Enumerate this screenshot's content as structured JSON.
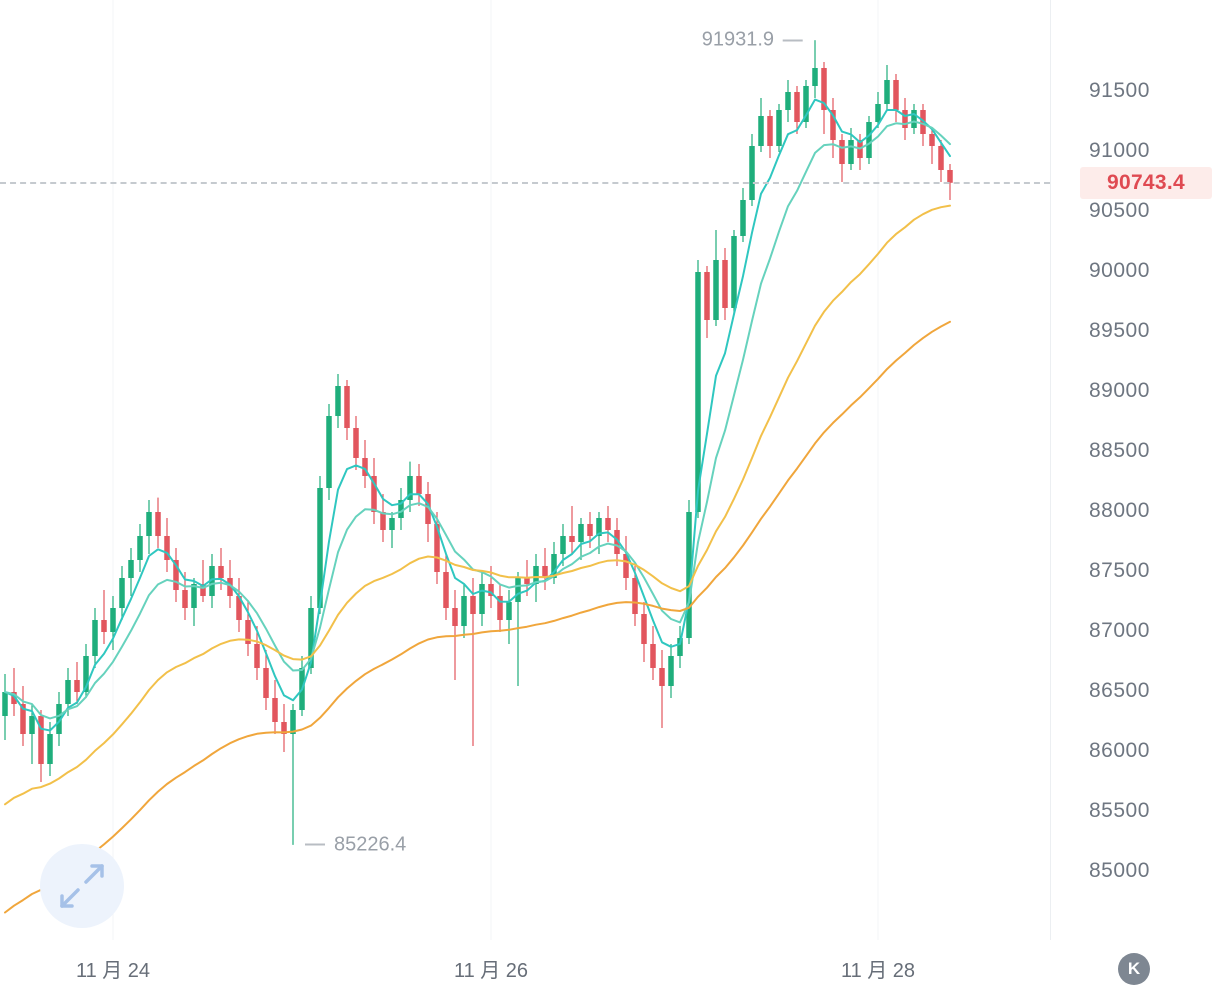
{
  "chart_data": {
    "type": "candlestick",
    "y_ticks": [
      91500,
      91000,
      90500,
      90000,
      89500,
      89000,
      88500,
      88000,
      87500,
      87000,
      86500,
      86000,
      85500,
      85000
    ],
    "x_ticks": [
      {
        "index": 12,
        "label": "11 月 24"
      },
      {
        "index": 54,
        "label": "11 月 26"
      },
      {
        "index": 97,
        "label": "11 月 28"
      }
    ],
    "high_label": "91931.9",
    "low_label": "85226.4",
    "last_price": "90743.4",
    "colors": {
      "up": "#1fae7c",
      "down": "#e2565e",
      "ma_fast_1": "#2fc7c0",
      "ma_fast_2": "#66d2bd",
      "ma_slow_1": "#f2c04a",
      "ma_slow_2": "#f0a63c",
      "last_price_text": "#df4a52",
      "last_price_bg": "#fdecea",
      "axis_text": "#6e7681",
      "annotation_text": "#999fa7"
    },
    "ma_lines": [
      {
        "name": "ema-fast-1",
        "period": 5,
        "color": "#2fc7c0"
      },
      {
        "name": "ema-fast-2",
        "period": 10,
        "color": "#66d2bd"
      },
      {
        "name": "ema-slow-1",
        "period": 30,
        "color": "#f2c04a",
        "init": 85500
      },
      {
        "name": "ema-slow-2",
        "period": 60,
        "color": "#f0a63c",
        "init": 84600
      }
    ],
    "candles": [
      [
        86300,
        86650,
        86100,
        86500
      ],
      [
        86500,
        86700,
        86300,
        86400
      ],
      [
        86400,
        86550,
        86050,
        86150
      ],
      [
        86150,
        86400,
        85900,
        86300
      ],
      [
        86300,
        86350,
        85750,
        85900
      ],
      [
        85900,
        86250,
        85800,
        86150
      ],
      [
        86150,
        86500,
        86050,
        86400
      ],
      [
        86400,
        86700,
        86300,
        86600
      ],
      [
        86600,
        86750,
        86400,
        86500
      ],
      [
        86500,
        86900,
        86450,
        86800
      ],
      [
        86800,
        87200,
        86700,
        87100
      ],
      [
        87100,
        87350,
        86900,
        87000
      ],
      [
        87000,
        87300,
        86850,
        87200
      ],
      [
        87200,
        87550,
        87100,
        87450
      ],
      [
        87450,
        87700,
        87300,
        87600
      ],
      [
        87600,
        87900,
        87500,
        87800
      ],
      [
        87800,
        88100,
        87650,
        88000
      ],
      [
        88000,
        88120,
        87700,
        87800
      ],
      [
        87800,
        87950,
        87500,
        87600
      ],
      [
        87600,
        87700,
        87250,
        87350
      ],
      [
        87350,
        87500,
        87100,
        87200
      ],
      [
        87200,
        87450,
        87050,
        87400
      ],
      [
        87400,
        87600,
        87250,
        87300
      ],
      [
        87300,
        87650,
        87200,
        87550
      ],
      [
        87550,
        87700,
        87350,
        87450
      ],
      [
        87450,
        87600,
        87200,
        87300
      ],
      [
        87300,
        87450,
        87000,
        87100
      ],
      [
        87100,
        87250,
        86800,
        86900
      ],
      [
        86900,
        87050,
        86600,
        86700
      ],
      [
        86700,
        86850,
        86350,
        86450
      ],
      [
        86450,
        86600,
        86150,
        86250
      ],
      [
        86250,
        86400,
        86000,
        86150
      ],
      [
        86150,
        86400,
        85226.4,
        86350
      ],
      [
        86350,
        86800,
        86300,
        86700
      ],
      [
        86700,
        87300,
        86650,
        87200
      ],
      [
        87200,
        88300,
        87150,
        88200
      ],
      [
        88200,
        88900,
        88100,
        88800
      ],
      [
        88800,
        89150,
        88700,
        89050
      ],
      [
        89050,
        89100,
        88600,
        88700
      ],
      [
        88700,
        88800,
        88350,
        88450
      ],
      [
        88450,
        88600,
        88200,
        88300
      ],
      [
        88300,
        88450,
        87900,
        88000
      ],
      [
        88000,
        88150,
        87750,
        87850
      ],
      [
        87850,
        88000,
        87700,
        87950
      ],
      [
        87950,
        88200,
        87850,
        88100
      ],
      [
        88100,
        88420,
        88000,
        88300
      ],
      [
        88300,
        88400,
        88050,
        88150
      ],
      [
        88150,
        88250,
        87750,
        87900
      ],
      [
        87900,
        88000,
        87400,
        87500
      ],
      [
        87500,
        87650,
        87100,
        87200
      ],
      [
        87200,
        87350,
        86600,
        87050
      ],
      [
        87050,
        87400,
        86950,
        87300
      ],
      [
        87300,
        87450,
        86050,
        87150
      ],
      [
        87150,
        87500,
        87050,
        87400
      ],
      [
        87400,
        87550,
        87200,
        87300
      ],
      [
        87300,
        87400,
        87000,
        87100
      ],
      [
        87100,
        87350,
        86900,
        87250
      ],
      [
        87250,
        87500,
        86550,
        87450
      ],
      [
        87450,
        87600,
        87300,
        87400
      ],
      [
        87400,
        87650,
        87250,
        87550
      ],
      [
        87550,
        87700,
        87350,
        87450
      ],
      [
        87450,
        87750,
        87400,
        87650
      ],
      [
        87650,
        87900,
        87550,
        87800
      ],
      [
        87800,
        88050,
        87650,
        87750
      ],
      [
        87750,
        87950,
        87600,
        87900
      ],
      [
        87900,
        88000,
        87700,
        87800
      ],
      [
        87800,
        88000,
        87650,
        87950
      ],
      [
        87950,
        88050,
        87750,
        87850
      ],
      [
        87850,
        87950,
        87550,
        87650
      ],
      [
        87650,
        87800,
        87350,
        87450
      ],
      [
        87450,
        87550,
        87050,
        87150
      ],
      [
        87150,
        87250,
        86750,
        86900
      ],
      [
        86900,
        87050,
        86600,
        86700
      ],
      [
        86700,
        86850,
        86200,
        86550
      ],
      [
        86550,
        86900,
        86450,
        86800
      ],
      [
        86800,
        87050,
        86700,
        86950
      ],
      [
        86950,
        88100,
        86900,
        88000
      ],
      [
        88000,
        90100,
        87950,
        90000
      ],
      [
        90000,
        90050,
        89450,
        89600
      ],
      [
        89600,
        90350,
        89550,
        90100
      ],
      [
        90100,
        90200,
        89600,
        89700
      ],
      [
        89700,
        90350,
        89650,
        90300
      ],
      [
        90300,
        90700,
        90250,
        90600
      ],
      [
        90600,
        91150,
        90550,
        91050
      ],
      [
        91050,
        91450,
        91000,
        91300
      ],
      [
        91300,
        91350,
        90950,
        91050
      ],
      [
        91050,
        91400,
        91000,
        91350
      ],
      [
        91350,
        91600,
        91250,
        91500
      ],
      [
        91500,
        91550,
        91150,
        91250
      ],
      [
        91250,
        91600,
        91200,
        91550
      ],
      [
        91550,
        91931.9,
        91450,
        91700
      ],
      [
        91700,
        91750,
        91150,
        91350
      ],
      [
        91350,
        91450,
        90950,
        91100
      ],
      [
        91100,
        91150,
        90750,
        90900
      ],
      [
        90900,
        91200,
        90850,
        91100
      ],
      [
        91100,
        91150,
        90850,
        90950
      ],
      [
        90950,
        91300,
        90900,
        91250
      ],
      [
        91250,
        91500,
        91200,
        91400
      ],
      [
        91400,
        91725,
        91350,
        91600
      ],
      [
        91600,
        91650,
        91250,
        91350
      ],
      [
        91350,
        91450,
        91100,
        91200
      ],
      [
        91200,
        91400,
        91150,
        91350
      ],
      [
        91350,
        91400,
        91050,
        91150
      ],
      [
        91150,
        91200,
        90900,
        91050
      ],
      [
        91050,
        91100,
        90750,
        90850
      ],
      [
        90850,
        90900,
        90600,
        90743.4
      ]
    ]
  },
  "controls": {
    "k_badge_label": "K"
  }
}
